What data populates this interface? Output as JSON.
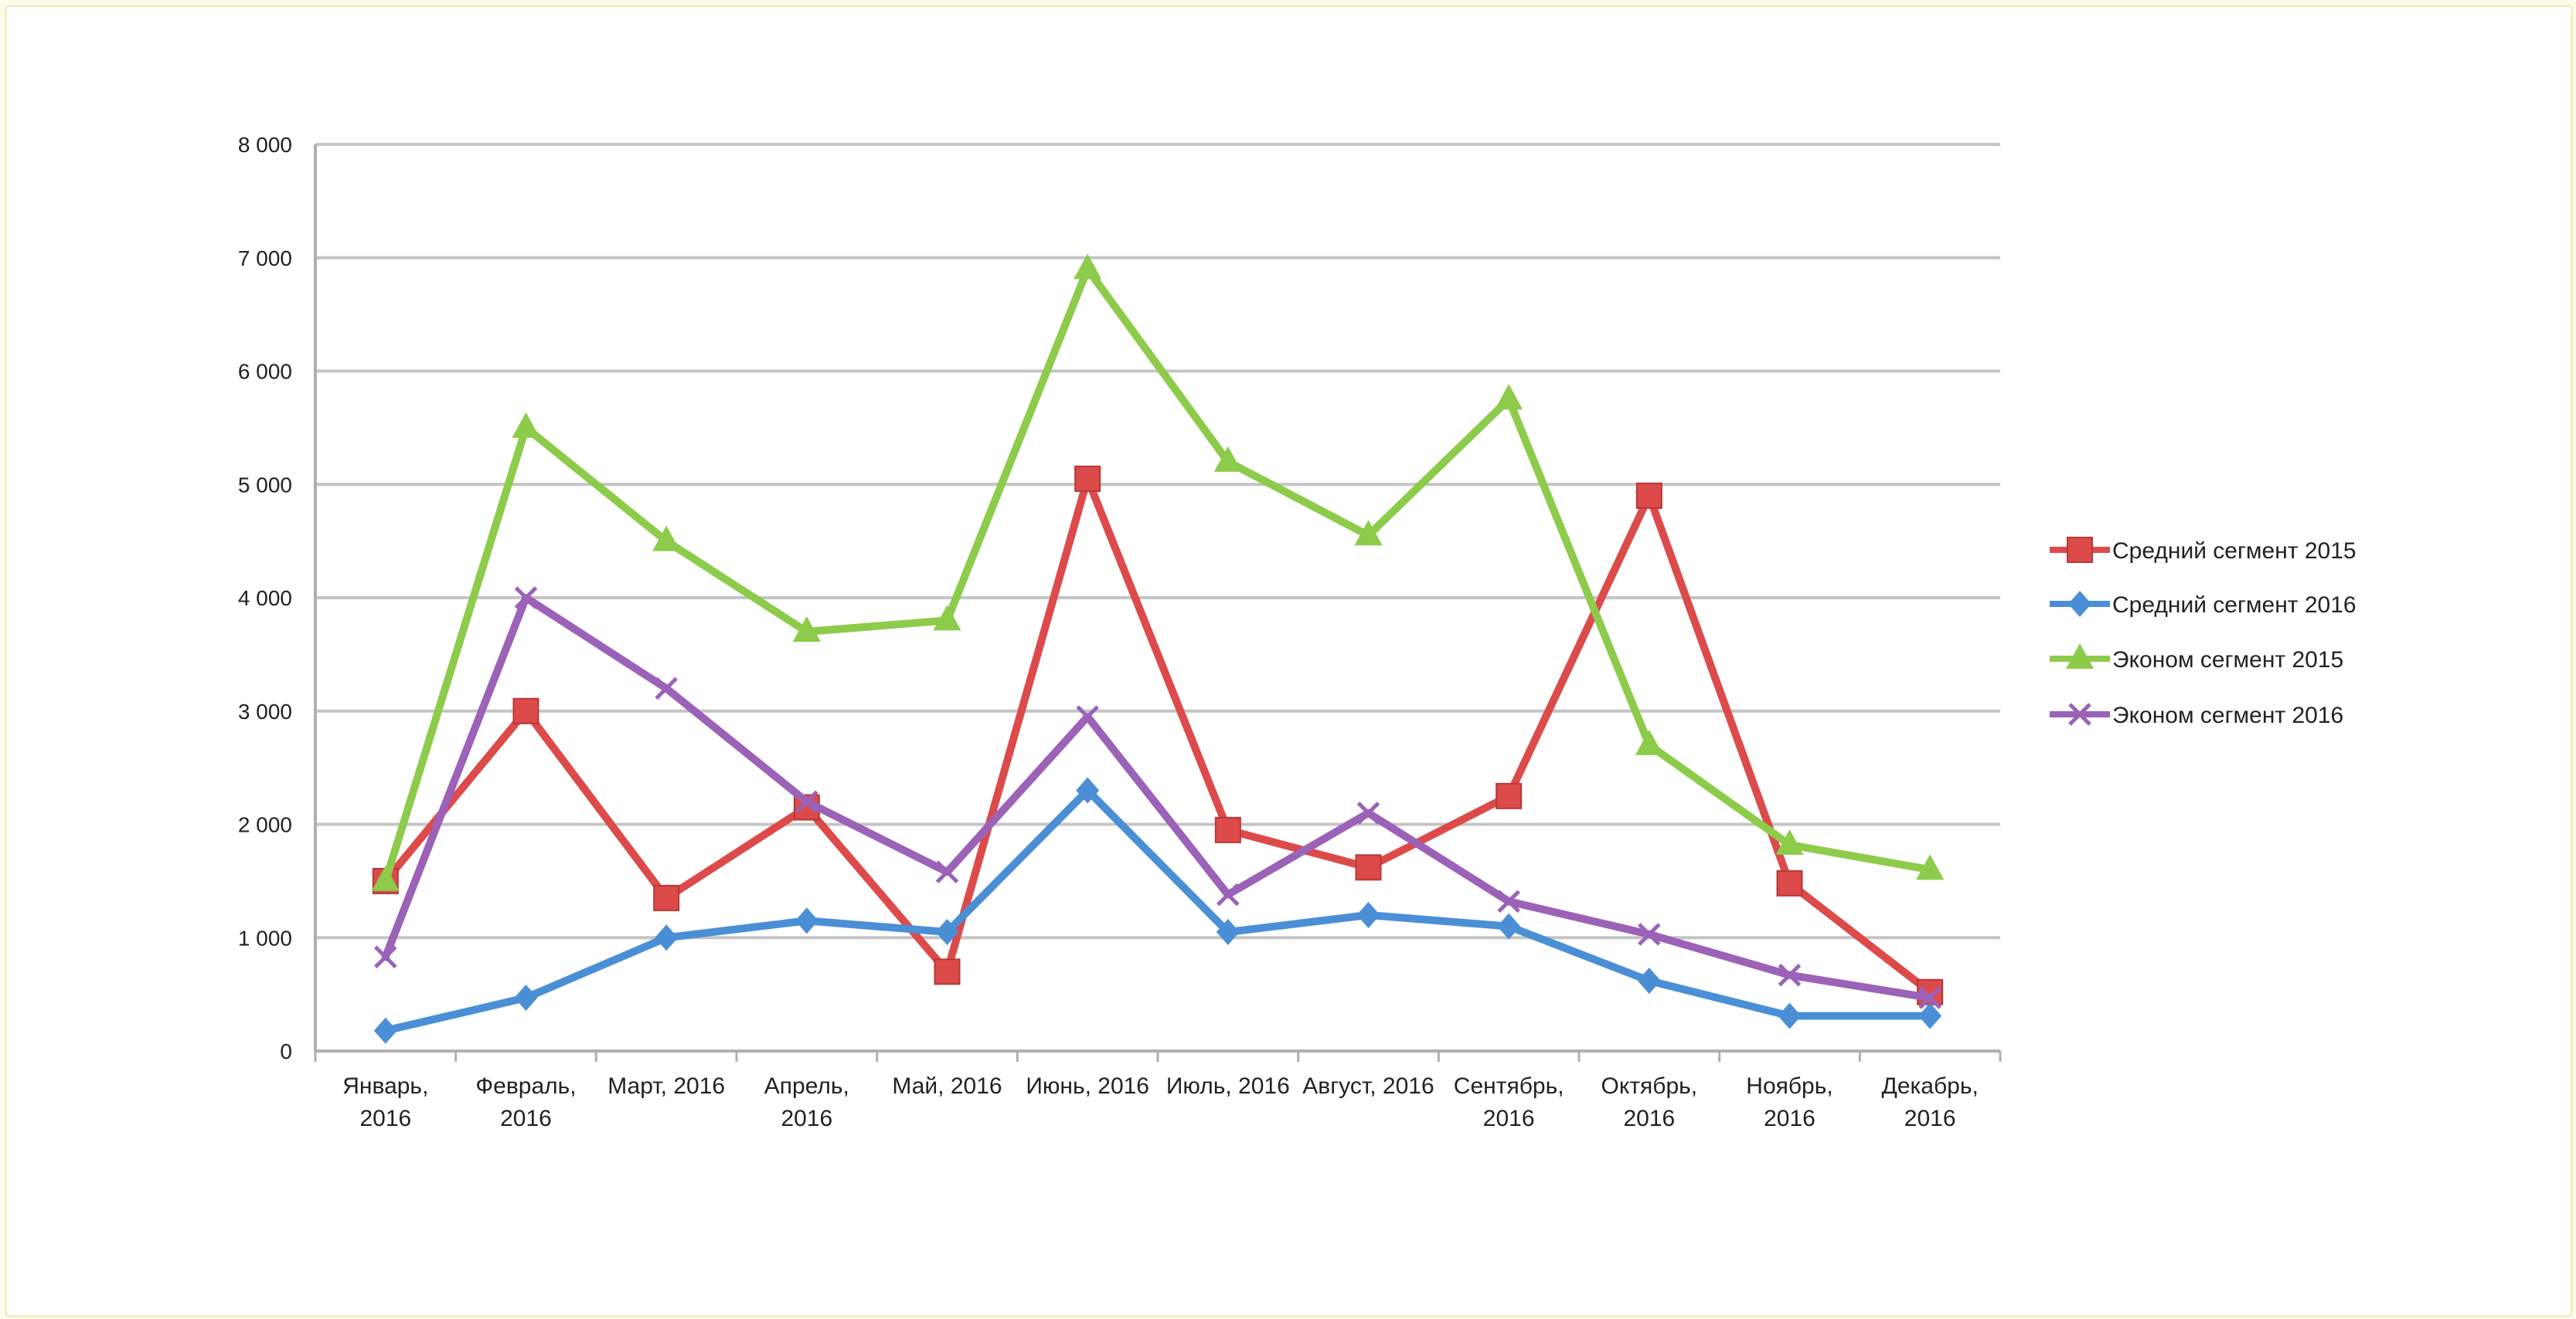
{
  "chart_data": {
    "type": "line",
    "title": "",
    "xlabel": "",
    "ylabel": "",
    "ylim": [
      0,
      8000
    ],
    "y_ticks": [
      "0",
      "1 000",
      "2 000",
      "3 000",
      "4 000",
      "5 000",
      "6 000",
      "7 000",
      "8 000"
    ],
    "categories": [
      [
        "Январь,",
        "2016"
      ],
      [
        "Февраль,",
        "2016"
      ],
      [
        "Март, 2016"
      ],
      [
        "Апрель,",
        "2016"
      ],
      [
        "Май, 2016"
      ],
      [
        "Июнь, 2016"
      ],
      [
        "Июль, 2016"
      ],
      [
        "Август, 2016"
      ],
      [
        "Сентябрь,",
        "2016"
      ],
      [
        "Октябрь,",
        "2016"
      ],
      [
        "Ноябрь,",
        "2016"
      ],
      [
        "Декабрь,",
        "2016"
      ]
    ],
    "grid": true,
    "legend_position": "right",
    "series": [
      {
        "name": "Средний сегмент 2015",
        "color": "#dd4a4a",
        "marker": "square",
        "values": [
          1500,
          3000,
          1350,
          2150,
          700,
          5050,
          1950,
          1620,
          2250,
          4900,
          1480,
          520
        ]
      },
      {
        "name": "Средний сегмент 2016",
        "color": "#4a8fd6",
        "marker": "diamond",
        "values": [
          180,
          470,
          1000,
          1150,
          1050,
          2300,
          1050,
          1200,
          1100,
          620,
          310,
          310
        ]
      },
      {
        "name": "Эконом сегмент 2015",
        "color": "#8dcb4a",
        "marker": "triangle",
        "values": [
          1500,
          5500,
          4500,
          3700,
          3800,
          6900,
          5200,
          4550,
          5750,
          2700,
          1820,
          1600
        ]
      },
      {
        "name": "Эконом сегмент 2016",
        "color": "#9b62b8",
        "marker": "x",
        "values": [
          830,
          4000,
          3200,
          2200,
          1580,
          2950,
          1380,
          2100,
          1320,
          1030,
          670,
          470
        ]
      }
    ]
  }
}
